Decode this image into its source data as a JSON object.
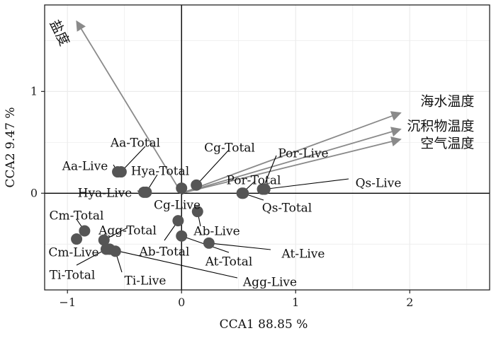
{
  "chart_data": {
    "type": "scatter",
    "xlabel": "CCA1  88.85 %",
    "ylabel": "CCA2  9.47 %",
    "xlim": [
      -1.2,
      2.7
    ],
    "ylim": [
      -0.95,
      1.85
    ],
    "xticks": [
      {
        "value": -1,
        "label": "−1"
      },
      {
        "value": 0,
        "label": "0"
      },
      {
        "value": 1,
        "label": "1"
      },
      {
        "value": 2,
        "label": "2"
      }
    ],
    "yticks": [
      {
        "value": 0,
        "label": "0"
      },
      {
        "value": 1,
        "label": "1"
      }
    ],
    "grid": true,
    "colors": {
      "points": "#555555",
      "arrows": "#8a8a8a",
      "grid": "#ebebeb",
      "zero_lines": "#000000"
    },
    "arrows": [
      {
        "name": "盐度",
        "x": -0.92,
        "y": 1.69
      },
      {
        "name": "海水温度",
        "x": 1.92,
        "y": 0.79
      },
      {
        "name": "沉积物温度",
        "x": 1.92,
        "y": 0.63
      },
      {
        "name": "空气温度",
        "x": 1.92,
        "y": 0.53
      }
    ],
    "points": [
      {
        "name": "Aa-Total",
        "x": -0.53,
        "y": 0.21
      },
      {
        "name": "Aa-Live",
        "x": -0.56,
        "y": 0.21
      },
      {
        "name": "Hya-Total",
        "x": -0.31,
        "y": 0.01
      },
      {
        "name": "Hya-Live",
        "x": -0.33,
        "y": 0.01
      },
      {
        "name": "Cg-Total",
        "x": 0.13,
        "y": 0.08
      },
      {
        "name": "Cg-Live",
        "x": 0.0,
        "y": 0.05
      },
      {
        "name": "Por-Live",
        "x": 0.71,
        "y": 0.04
      },
      {
        "name": "Por-Total",
        "x": 0.53,
        "y": 0.0
      },
      {
        "name": "Qs-Live",
        "x": 0.73,
        "y": 0.04
      },
      {
        "name": "Qs-Total",
        "x": 0.54,
        "y": 0.0
      },
      {
        "name": "Cm-Total",
        "x": -0.85,
        "y": -0.37
      },
      {
        "name": "Cm-Live",
        "x": -0.92,
        "y": -0.45
      },
      {
        "name": "Agg-Total",
        "x": -0.68,
        "y": -0.46
      },
      {
        "name": "Agg-Live",
        "x": -0.63,
        "y": -0.55
      },
      {
        "name": "Ti-Total",
        "x": -0.66,
        "y": -0.55
      },
      {
        "name": "Ti-Live",
        "x": -0.58,
        "y": -0.57
      },
      {
        "name": "Ab-Live",
        "x": 0.14,
        "y": -0.18
      },
      {
        "name": "Ab-Total",
        "x": -0.03,
        "y": -0.27
      },
      {
        "name": "At-Total",
        "x": 0.0,
        "y": -0.42
      },
      {
        "name": "At-Live",
        "x": 0.24,
        "y": -0.49
      }
    ]
  }
}
